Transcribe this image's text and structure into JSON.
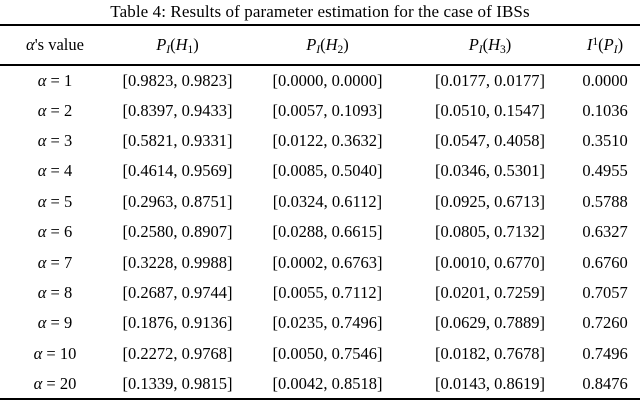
{
  "title": "Table 4: Results of parameter estimation for the case of IBSs",
  "symbols": {
    "alpha": "α",
    "equals": " = "
  },
  "table": {
    "header": {
      "col1": {
        "symbol": "α",
        "rest": "'s value"
      },
      "col2": {
        "base": "P",
        "base_sub": "I",
        "lp": "(",
        "arg": "H",
        "arg_sub": "1",
        "rp": ")"
      },
      "col3": {
        "base": "P",
        "base_sub": "I",
        "lp": "(",
        "arg": "H",
        "arg_sub": "2",
        "rp": ")"
      },
      "col4": {
        "base": "P",
        "base_sub": "I",
        "lp": "(",
        "arg": "H",
        "arg_sub": "3",
        "rp": ")"
      },
      "col5": {
        "base": "I",
        "sup": "1",
        "lp": "(",
        "arg": "P",
        "arg_sub": "I",
        "rp": ")"
      }
    },
    "rows": [
      {
        "alpha": "1",
        "h1": "[0.9823, 0.9823]",
        "h2": "[0.0000, 0.0000]",
        "h3": "[0.0177, 0.0177]",
        "i1": "0.0000"
      },
      {
        "alpha": "2",
        "h1": "[0.8397, 0.9433]",
        "h2": "[0.0057, 0.1093]",
        "h3": "[0.0510, 0.1547]",
        "i1": "0.1036"
      },
      {
        "alpha": "3",
        "h1": "[0.5821, 0.9331]",
        "h2": "[0.0122, 0.3632]",
        "h3": "[0.0547, 0.4058]",
        "i1": "0.3510"
      },
      {
        "alpha": "4",
        "h1": "[0.4614, 0.9569]",
        "h2": "[0.0085, 0.5040]",
        "h3": "[0.0346, 0.5301]",
        "i1": "0.4955"
      },
      {
        "alpha": "5",
        "h1": "[0.2963, 0.8751]",
        "h2": "[0.0324, 0.6112]",
        "h3": "[0.0925, 0.6713]",
        "i1": "0.5788"
      },
      {
        "alpha": "6",
        "h1": "[0.2580, 0.8907]",
        "h2": "[0.0288, 0.6615]",
        "h3": "[0.0805, 0.7132]",
        "i1": "0.6327"
      },
      {
        "alpha": "7",
        "h1": "[0.3228, 0.9988]",
        "h2": "[0.0002, 0.6763]",
        "h3": "[0.0010, 0.6770]",
        "i1": "0.6760"
      },
      {
        "alpha": "8",
        "h1": "[0.2687, 0.9744]",
        "h2": "[0.0055, 0.7112]",
        "h3": "[0.0201, 0.7259]",
        "i1": "0.7057"
      },
      {
        "alpha": "9",
        "h1": "[0.1876, 0.9136]",
        "h2": "[0.0235, 0.7496]",
        "h3": "[0.0629, 0.7889]",
        "i1": "0.7260"
      },
      {
        "alpha": "10",
        "h1": "[0.2272, 0.9768]",
        "h2": "[0.0050, 0.7546]",
        "h3": "[0.0182, 0.7678]",
        "i1": "0.7496"
      },
      {
        "alpha": "20",
        "h1": "[0.1339, 0.9815]",
        "h2": "[0.0042, 0.8518]",
        "h3": "[0.0143, 0.8619]",
        "i1": "0.8476"
      }
    ]
  },
  "colors": {
    "text": "#000000",
    "background": "#ffffff",
    "rule": "#000000"
  }
}
